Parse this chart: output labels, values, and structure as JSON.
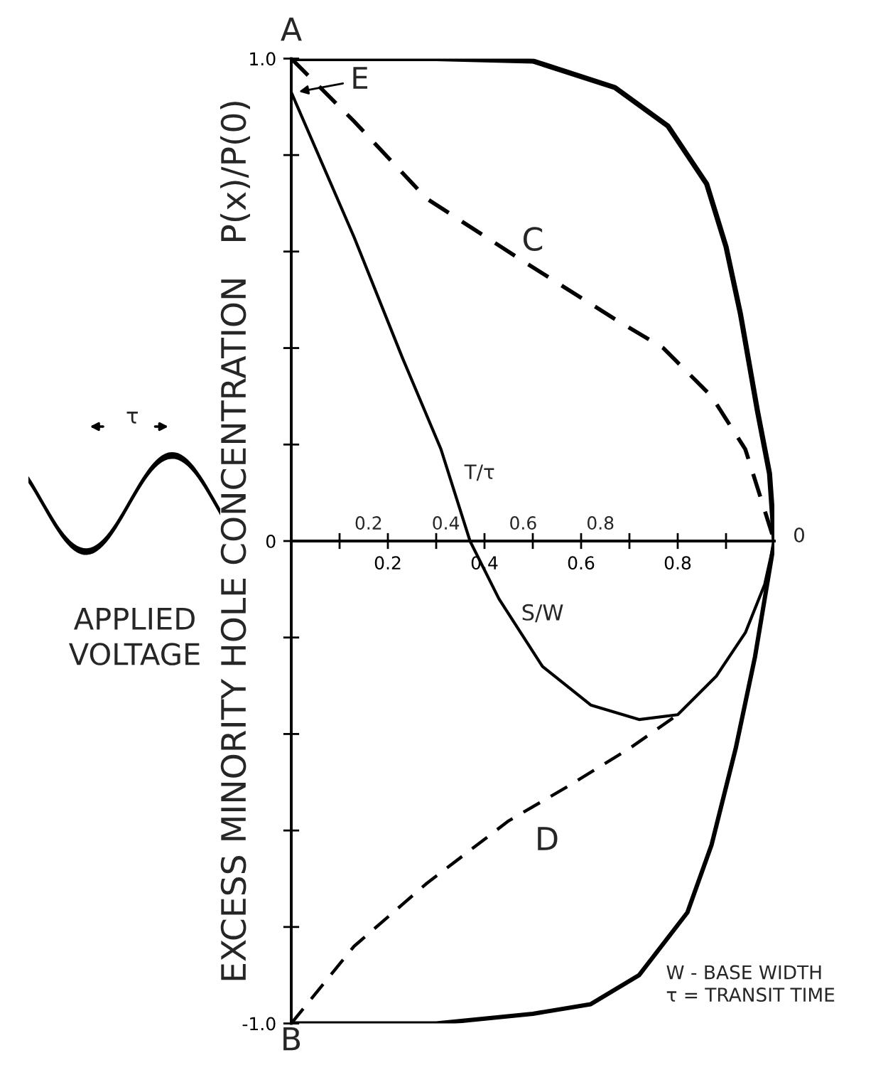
{
  "chart_data": {
    "type": "line",
    "xlabel": "S/W",
    "x2label": "T/τ",
    "ylabel": "EXCESS MINORITY HOLE CONCENTRATION   P(x)/P(0)",
    "xlim": [
      0,
      1
    ],
    "ylim": [
      -1,
      1
    ],
    "xticks": [
      {
        "value": 0.1,
        "label": null
      },
      0.2,
      {
        "value": 0.3,
        "label": null
      },
      0.4,
      {
        "value": 0.5,
        "label": null
      },
      0.6,
      {
        "value": 0.7,
        "label": null
      },
      0.8,
      {
        "value": 0.9,
        "label": null
      }
    ],
    "x2lim": [
      0,
      1.25
    ],
    "x2ticks": [
      0.2,
      0.4,
      0.6,
      0.8
    ],
    "yticks": [
      {
        "value": -1,
        "label": "-1.0"
      },
      {
        "value": -0.8,
        "label": null
      },
      {
        "value": -0.6,
        "label": null
      },
      {
        "value": -0.4,
        "label": null
      },
      {
        "value": -0.2,
        "label": null
      },
      0,
      {
        "value": 0.2,
        "label": null
      },
      {
        "value": 0.4,
        "label": null
      },
      {
        "value": 0.6,
        "label": null
      },
      {
        "value": 0.8,
        "label": null
      },
      {
        "value": 1,
        "label": "1.0"
      }
    ],
    "grid": false,
    "legend": false,
    "series": [
      {
        "color": "#000000",
        "line_style": "solid",
        "x": [
          0,
          0.3,
          0.5,
          0.67,
          0.78,
          0.86,
          0.9,
          0.93,
          0.965,
          0.99,
          1
        ],
        "values": [
          1,
          1,
          0.995,
          0.94,
          0.86,
          0.74,
          0.61,
          0.47,
          0.27,
          0.14,
          0
        ]
      },
      {
        "color": "#000000",
        "line_style": "solid",
        "x": [
          0,
          0.3,
          0.5,
          0.62,
          0.72,
          0.82,
          0.87,
          0.92,
          0.96,
          0.985,
          1
        ],
        "values": [
          -1,
          -1,
          -0.98,
          -0.96,
          -0.9,
          -0.77,
          -0.63,
          -0.43,
          -0.24,
          -0.09,
          0
        ]
      },
      {
        "color": "#000000",
        "line_style": "dashed",
        "x": [
          0,
          0.13,
          0.28,
          0.48,
          0.67,
          0.77,
          0.87,
          0.94,
          1
        ],
        "values": [
          1,
          0.87,
          0.71,
          0.58,
          0.46,
          0.4,
          0.3,
          0.19,
          0
        ]
      },
      {
        "color": "#000000",
        "line_style": "dashed",
        "x": [
          0,
          0.13,
          0.28,
          0.45,
          0.57,
          0.7,
          0.8
        ],
        "values": [
          -1,
          -0.84,
          -0.71,
          -0.58,
          -0.51,
          -0.43,
          -0.36
        ]
      },
      {
        "color": "#000000",
        "line_style": "solid",
        "x": [
          0,
          0.13,
          0.23,
          0.31,
          0.37,
          0.43,
          0.52,
          0.62,
          0.72,
          0.8,
          0.88,
          0.94,
          0.98,
          1
        ],
        "values": [
          0.93,
          0.63,
          0.38,
          0.19,
          0,
          -0.12,
          -0.26,
          -0.34,
          -0.37,
          -0.36,
          -0.28,
          -0.19,
          -0.09,
          0
        ]
      }
    ],
    "annotations": [
      "A",
      "B",
      "C",
      "D",
      {
        "text": "E",
        "x": 0,
        "y": 0.93
      },
      "0",
      "τ",
      "APPLIED\nVOLTAGE",
      "W - BASE WIDTH\nτ = TRANSIT TIME"
    ]
  }
}
